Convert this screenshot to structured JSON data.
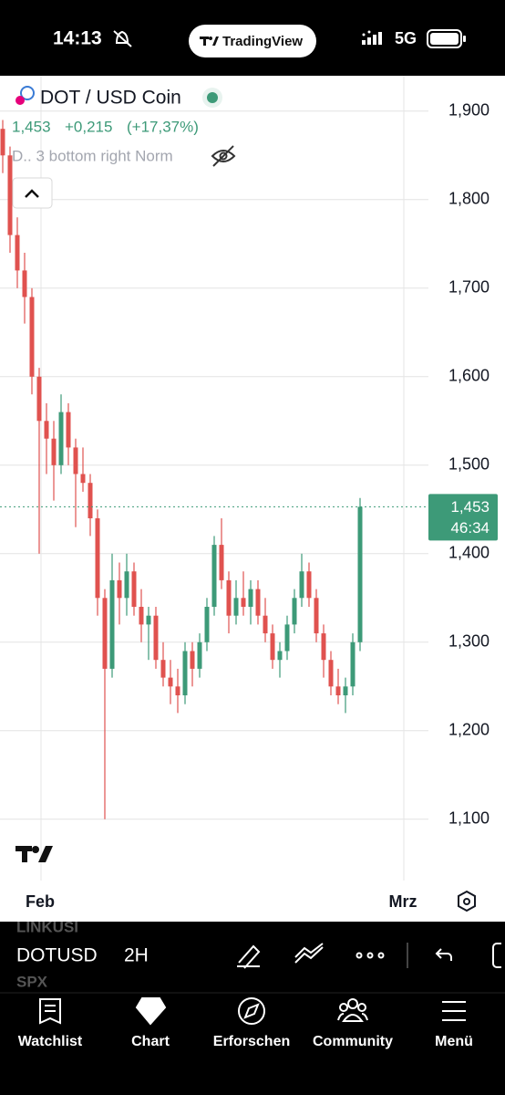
{
  "status_bar": {
    "time": "14:13",
    "app": "TradingView",
    "network": "5G"
  },
  "header": {
    "symbol": "DOT / USD Coin",
    "price": "1,453",
    "change": "+0,215",
    "change_pct": "(+17,37%)",
    "indicator": "D.. 3 bottom right Norm"
  },
  "chart_data": {
    "type": "candlestick",
    "up_color": "#3d9a78",
    "down_color": "#e0524f",
    "grid": true,
    "ylim": [
      1.03,
      1.94
    ],
    "yticks": [
      {
        "value": 1.9,
        "label": "1,900"
      },
      {
        "value": 1.8,
        "label": "1,800"
      },
      {
        "value": 1.7,
        "label": "1,700"
      },
      {
        "value": 1.6,
        "label": "1,600"
      },
      {
        "value": 1.5,
        "label": "1,500"
      },
      {
        "value": 1.4,
        "label": "1,400"
      },
      {
        "value": 1.3,
        "label": "1,300"
      },
      {
        "value": 1.2,
        "label": "1,200"
      },
      {
        "value": 1.1,
        "label": "1,100"
      }
    ],
    "x_labels": [
      "Feb",
      "Mrz"
    ],
    "last_price": {
      "value": 1.453,
      "label": "1,453"
    },
    "countdown": "46:34",
    "open": [
      1.88,
      1.85,
      1.76,
      1.72,
      1.69,
      1.6,
      1.55,
      1.53,
      1.5,
      1.56,
      1.52,
      1.49,
      1.48,
      1.44,
      1.35,
      1.27,
      1.37,
      1.35,
      1.38,
      1.34,
      1.32,
      1.33,
      1.28,
      1.26,
      1.25,
      1.24,
      1.29,
      1.27,
      1.3,
      1.34,
      1.41,
      1.37,
      1.33,
      1.35,
      1.34,
      1.36,
      1.33,
      1.31,
      1.28,
      1.29,
      1.32,
      1.35,
      1.38,
      1.35,
      1.31,
      1.28,
      1.25,
      1.24,
      1.25,
      1.3
    ],
    "high": [
      1.89,
      1.86,
      1.78,
      1.74,
      1.7,
      1.61,
      1.57,
      1.55,
      1.58,
      1.57,
      1.53,
      1.52,
      1.49,
      1.45,
      1.36,
      1.4,
      1.39,
      1.4,
      1.39,
      1.36,
      1.34,
      1.34,
      1.3,
      1.28,
      1.27,
      1.3,
      1.3,
      1.31,
      1.35,
      1.42,
      1.44,
      1.38,
      1.37,
      1.38,
      1.37,
      1.37,
      1.35,
      1.32,
      1.3,
      1.33,
      1.36,
      1.4,
      1.39,
      1.36,
      1.32,
      1.29,
      1.27,
      1.26,
      1.31,
      1.463
    ],
    "low": [
      1.83,
      1.74,
      1.7,
      1.66,
      1.58,
      1.4,
      1.49,
      1.46,
      1.49,
      1.5,
      1.43,
      1.47,
      1.42,
      1.33,
      1.1,
      1.26,
      1.32,
      1.33,
      1.33,
      1.3,
      1.28,
      1.27,
      1.25,
      1.23,
      1.22,
      1.23,
      1.25,
      1.26,
      1.29,
      1.33,
      1.36,
      1.31,
      1.32,
      1.33,
      1.32,
      1.32,
      1.3,
      1.27,
      1.26,
      1.28,
      1.31,
      1.34,
      1.34,
      1.3,
      1.26,
      1.24,
      1.23,
      1.22,
      1.24,
      1.29
    ],
    "close": [
      1.85,
      1.76,
      1.72,
      1.69,
      1.6,
      1.55,
      1.53,
      1.5,
      1.56,
      1.52,
      1.49,
      1.48,
      1.44,
      1.35,
      1.27,
      1.37,
      1.35,
      1.38,
      1.34,
      1.32,
      1.33,
      1.28,
      1.26,
      1.25,
      1.24,
      1.29,
      1.27,
      1.3,
      1.34,
      1.41,
      1.37,
      1.33,
      1.35,
      1.34,
      1.36,
      1.33,
      1.31,
      1.28,
      1.29,
      1.32,
      1.35,
      1.38,
      1.35,
      1.31,
      1.28,
      1.25,
      1.24,
      1.25,
      1.3,
      1.453
    ]
  },
  "toolbar": {
    "prev_symbol": "LINKUSI",
    "symbol": "DOTUSD",
    "interval": "2H",
    "next_symbol": "SPX"
  },
  "tabs": [
    "Watchlist",
    "Chart",
    "Erforschen",
    "Community",
    "Menü"
  ]
}
